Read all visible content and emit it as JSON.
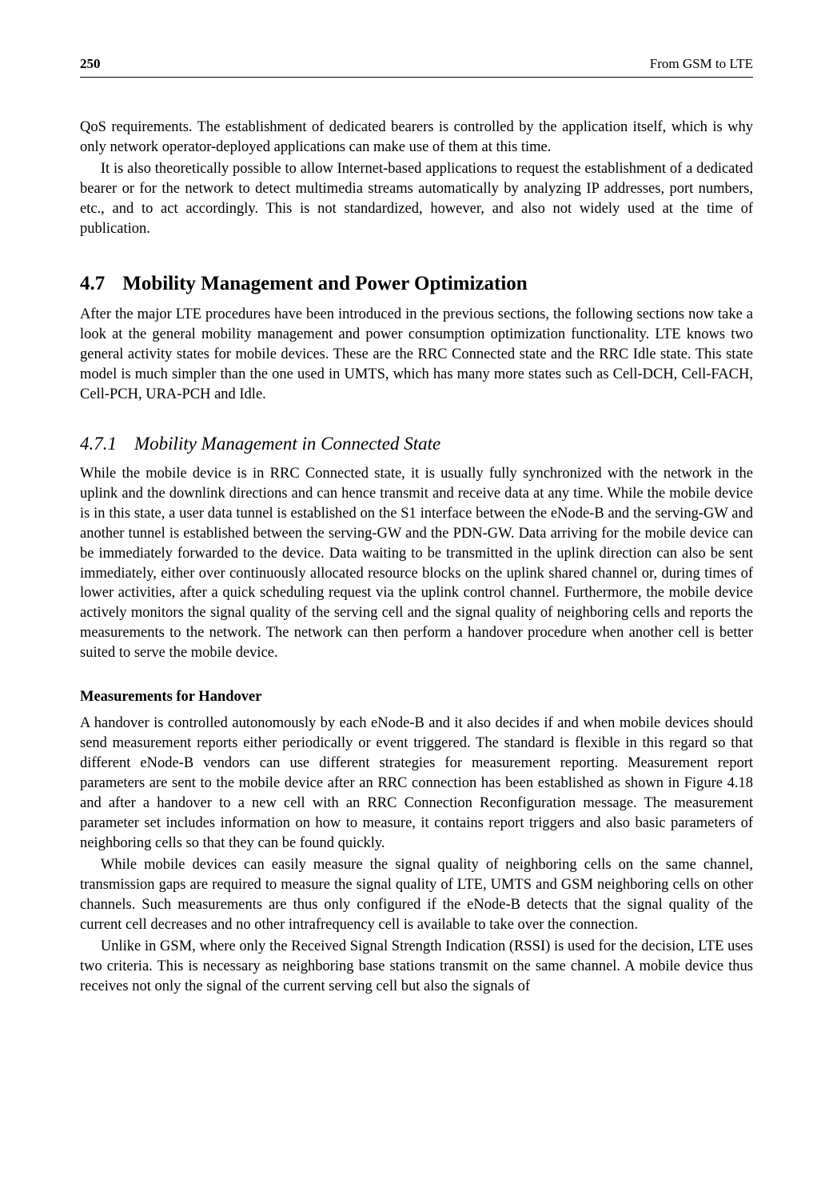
{
  "header": {
    "page_number": "250",
    "running_title": "From GSM to LTE"
  },
  "intro": {
    "p1": "QoS requirements. The establishment of dedicated bearers is controlled by the application itself, which is why only network operator-deployed applications can make use of them at this time.",
    "p2": "It is also theoretically possible to allow Internet-based applications to request the establishment of a dedicated bearer or for the network to detect multimedia streams automatically by analyzing IP addresses, port numbers, etc., and to act accordingly. This is not standardized, however, and also not widely used at the time of publication."
  },
  "section": {
    "number": "4.7",
    "title": "Mobility Management and Power Optimization",
    "p1": "After the major LTE procedures have been introduced in the previous sections, the following sections now take a look at the general mobility management and power consumption optimization functionality. LTE knows two general activity states for mobile devices. These are the RRC Connected state and the RRC Idle state. This state model is much simpler than the one used in UMTS, which has many more states such as Cell-DCH, Cell-FACH, Cell-PCH, URA-PCH and Idle."
  },
  "subsection": {
    "number": "4.7.1",
    "title": "Mobility Management in Connected State",
    "p1": "While the mobile device is in RRC Connected state, it is usually fully synchronized with the network in the uplink and the downlink directions and can hence transmit and receive data at any time. While the mobile device is in this state, a user data tunnel is established on the S1 interface between the eNode-B and the serving-GW and another tunnel is established between the serving-GW and the PDN-GW. Data arriving for the mobile device can be immediately forwarded to the device. Data waiting to be transmitted in the uplink direction can also be sent immediately, either over continuously allocated resource blocks on the uplink shared channel or, during times of lower activities, after a quick scheduling request via the uplink control channel. Furthermore, the mobile device actively monitors the signal quality of the serving cell and the signal quality of neighboring cells and reports the measurements to the network. The network can then perform a handover procedure when another cell is better suited to serve the mobile device."
  },
  "subsub": {
    "title": "Measurements for Handover",
    "p1": "A handover is controlled autonomously by each eNode-B and it also decides if and when mobile devices should send measurement reports either periodically or event triggered. The standard is flexible in this regard so that different eNode-B vendors can use different strategies for measurement reporting. Measurement report parameters are sent to the mobile device after an RRC connection has been established as shown in Figure 4.18 and after a handover to a new cell with an RRC Connection Reconfiguration message. The measurement parameter set includes information on how to measure, it contains report triggers and also basic parameters of neighboring cells so that they can be found quickly.",
    "p2": "While mobile devices can easily measure the signal quality of neighboring cells on the same channel, transmission gaps are required to measure the signal quality of LTE, UMTS and GSM neighboring cells on other channels. Such measurements are thus only configured if the eNode-B detects that the signal quality of the current cell decreases and no other intrafrequency cell is available to take over the connection.",
    "p3": "Unlike in GSM, where only the Received Signal Strength Indication (RSSI) is used for the decision, LTE uses two criteria. This is necessary as neighboring base stations transmit on the same channel. A mobile device thus receives not only the signal of the current serving cell but also the signals of"
  }
}
